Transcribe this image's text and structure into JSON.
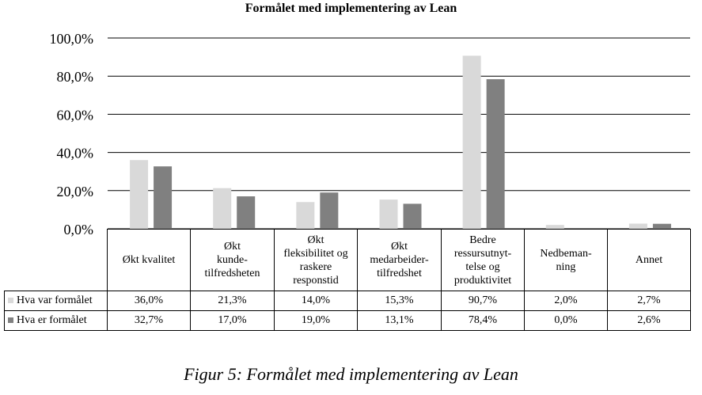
{
  "caption": "Figur 5: Formålet med implementering av Lean",
  "chart_data": {
    "type": "bar",
    "title": "Formålet med implementering av Lean",
    "categories": [
      "Økt kvalitet",
      "Økt kunde-tilfredsheten",
      "Økt fleksibilitet og raskere responstid",
      "Økt medarbeider-tilfredshet",
      "Bedre ressursutnyt-telse og produktivitet",
      "Nedbeman-ning",
      "Annet"
    ],
    "category_lines": [
      [
        "Økt kvalitet"
      ],
      [
        "Økt",
        "kunde-",
        "tilfredsheten"
      ],
      [
        "Økt",
        "fleksibilitet og",
        "raskere",
        "responstid"
      ],
      [
        "Økt",
        "medarbeider-",
        "tilfredshet"
      ],
      [
        "Bedre",
        "ressursutnyt-",
        "telse og",
        "produktivitet"
      ],
      [
        "Nedbeman-",
        "ning"
      ],
      [
        "Annet"
      ]
    ],
    "series": [
      {
        "name": "Hva var formålet",
        "color": "#d9d9d9",
        "values": [
          36.0,
          21.3,
          14.0,
          15.3,
          90.7,
          2.0,
          2.7
        ],
        "labels": [
          "36,0%",
          "21,3%",
          "14,0%",
          "15,3%",
          "90,7%",
          "2,0%",
          "2,7%"
        ]
      },
      {
        "name": "Hva er formålet",
        "color": "#808080",
        "values": [
          32.7,
          17.0,
          19.0,
          13.1,
          78.4,
          0.0,
          2.6
        ],
        "labels": [
          "32,7%",
          "17,0%",
          "19,0%",
          "13,1%",
          "78,4%",
          "0,0%",
          "2,6%"
        ]
      }
    ],
    "ylim": [
      0,
      100
    ],
    "yticks": [
      "0,0%",
      "20,0%",
      "40,0%",
      "60,0%",
      "80,0%",
      "100,0%"
    ],
    "grid": true,
    "legend": "data table"
  }
}
